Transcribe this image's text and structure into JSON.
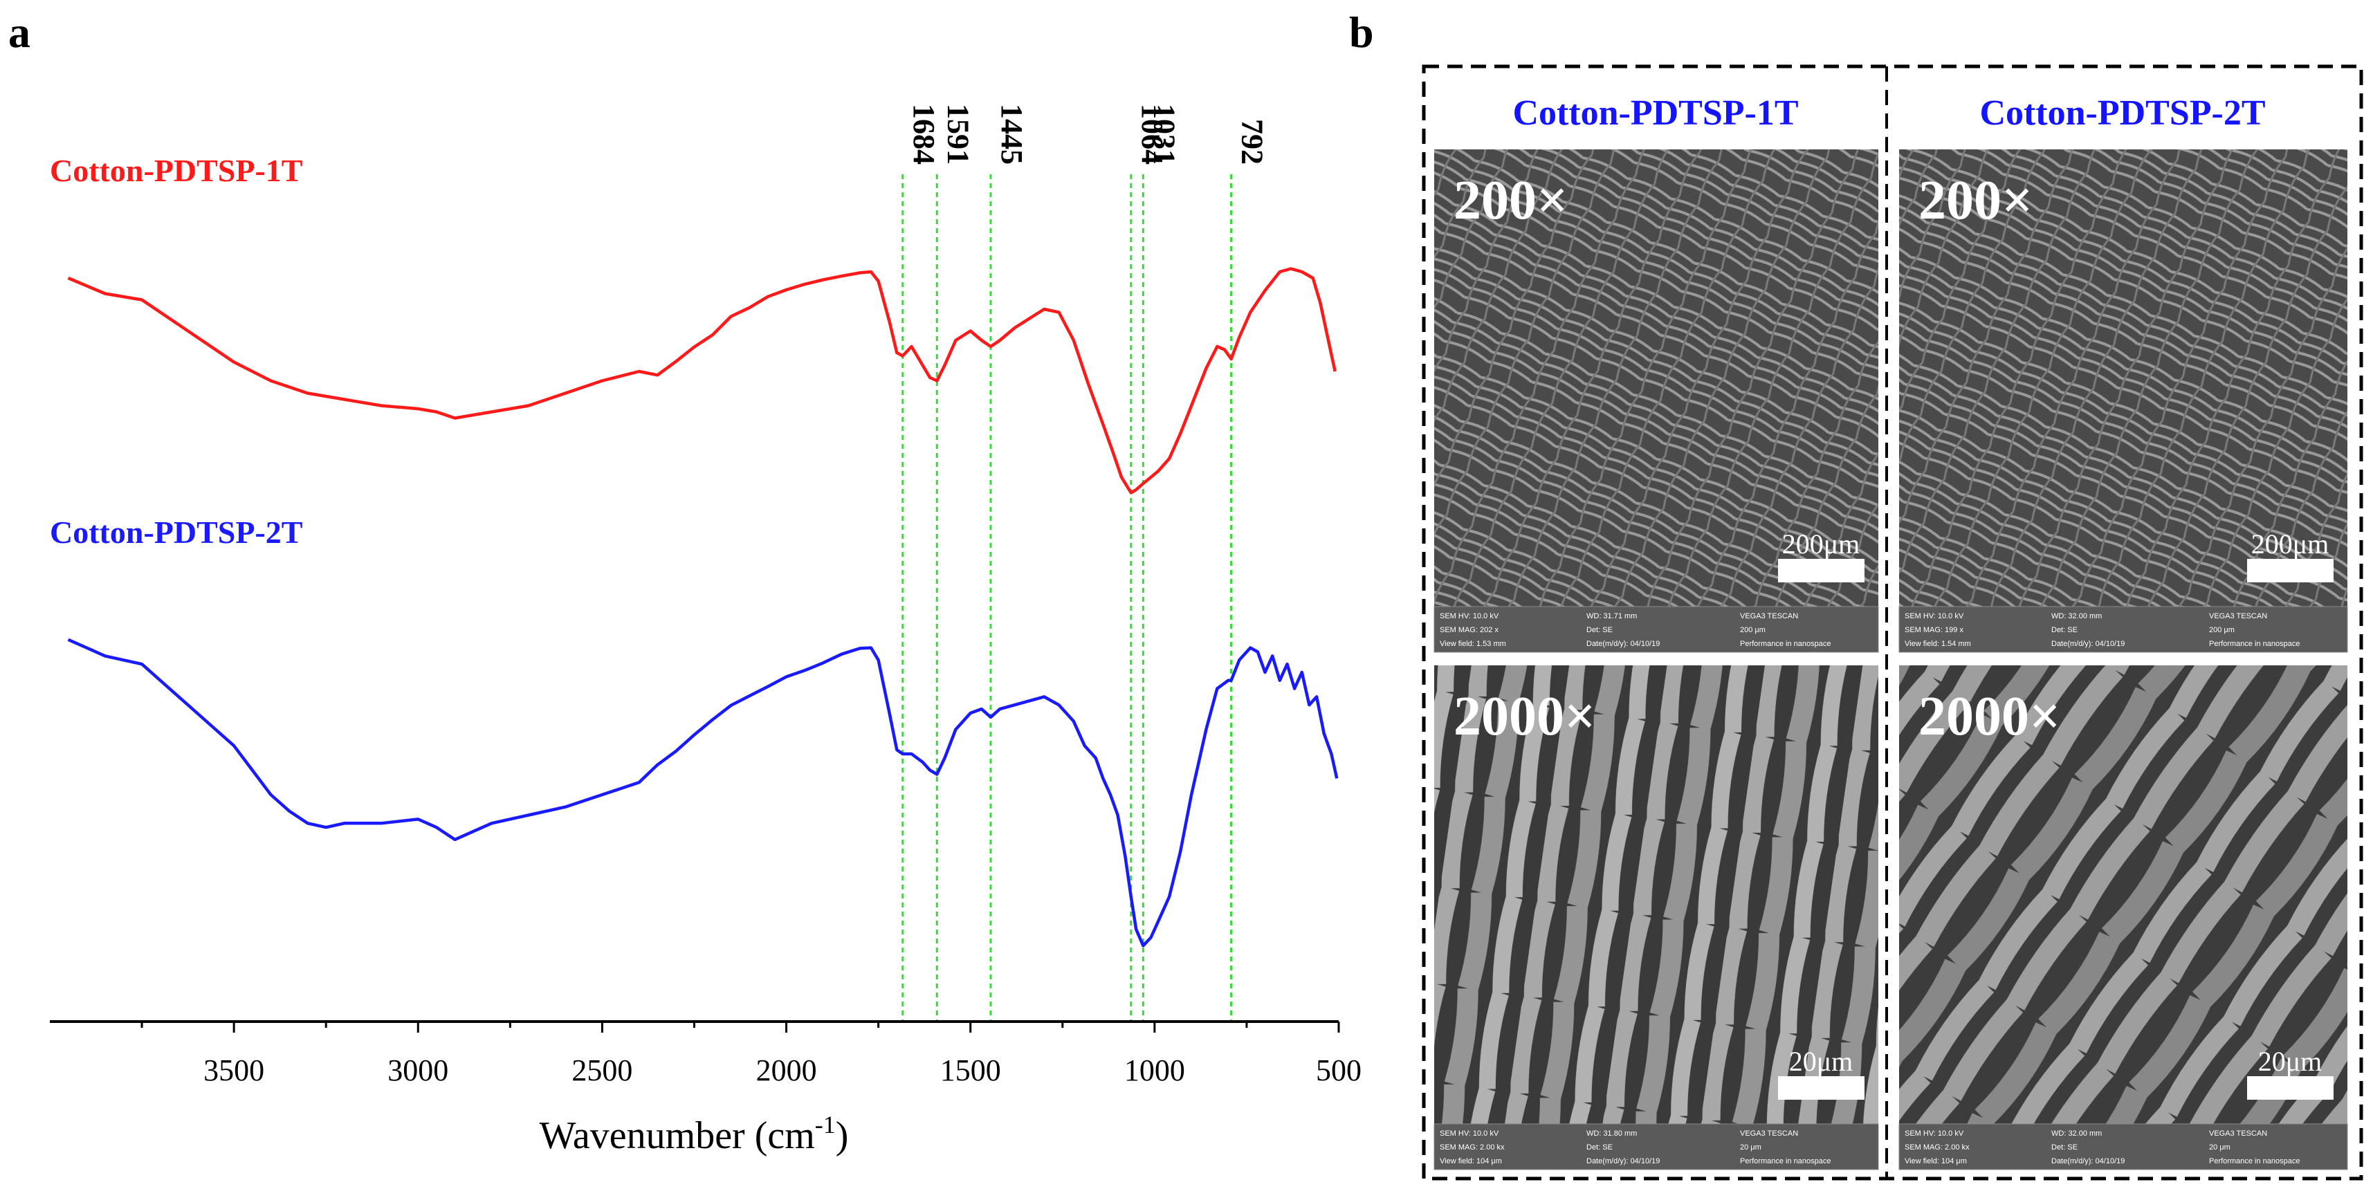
{
  "panels": {
    "a_letter": "a",
    "b_letter": "b"
  },
  "chart_data": {
    "type": "line",
    "title": "",
    "xlabel": "Wavenumber (cm",
    "xlabel_sup": "-1",
    "xlabel_close": ")",
    "ylabel": "",
    "xlim": [
      4000,
      500
    ],
    "ylim": [
      0,
      1
    ],
    "x_ticks": [
      3500,
      3000,
      2500,
      2000,
      1500,
      1000,
      500
    ],
    "x_tick_labels": [
      "3500",
      "3000",
      "2500",
      "2000",
      "1500",
      "1000",
      "500"
    ],
    "minor_tick_step": 250,
    "grid": false,
    "reference_lines": {
      "color": "#2fe02f",
      "positions": [
        1684,
        1591,
        1445,
        1064,
        1031,
        792
      ],
      "labels": [
        "1684",
        "1591",
        "1445",
        "1064",
        "1031",
        "792"
      ]
    },
    "series": [
      {
        "name": "Cotton-PDTSP-1T",
        "color": "#ff1a1a",
        "x": [
          3950,
          3850,
          3750,
          3700,
          3600,
          3500,
          3400,
          3300,
          3200,
          3100,
          3000,
          2950,
          2900,
          2850,
          2800,
          2700,
          2600,
          2500,
          2400,
          2350,
          2300,
          2250,
          2200,
          2150,
          2100,
          2050,
          2000,
          1950,
          1900,
          1850,
          1800,
          1770,
          1750,
          1720,
          1700,
          1684,
          1660,
          1630,
          1610,
          1591,
          1570,
          1540,
          1500,
          1470,
          1445,
          1420,
          1380,
          1340,
          1300,
          1260,
          1220,
          1180,
          1140,
          1110,
          1090,
          1064,
          1050,
          1031,
          1010,
          990,
          960,
          930,
          900,
          860,
          830,
          810,
          792,
          770,
          740,
          700,
          660,
          630,
          600,
          570,
          550,
          530,
          510
        ],
        "y": [
          0.74,
          0.69,
          0.67,
          0.63,
          0.55,
          0.47,
          0.41,
          0.37,
          0.35,
          0.33,
          0.32,
          0.31,
          0.29,
          0.3,
          0.31,
          0.33,
          0.37,
          0.41,
          0.44,
          0.45,
          0.49,
          0.53,
          0.56,
          0.61,
          0.63,
          0.66,
          0.68,
          0.7,
          0.72,
          0.74,
          0.76,
          0.76,
          0.73,
          0.6,
          0.5,
          0.49,
          0.52,
          0.46,
          0.42,
          0.41,
          0.46,
          0.54,
          0.57,
          0.54,
          0.52,
          0.54,
          0.58,
          0.61,
          0.64,
          0.63,
          0.54,
          0.4,
          0.27,
          0.17,
          0.1,
          0.05,
          0.06,
          0.08,
          0.1,
          0.12,
          0.16,
          0.24,
          0.33,
          0.45,
          0.52,
          0.51,
          0.48,
          0.55,
          0.63,
          0.7,
          0.76,
          0.77,
          0.76,
          0.74,
          0.66,
          0.55,
          0.44
        ]
      },
      {
        "name": "Cotton-PDTSP-2T",
        "color": "#1a1aff",
        "x": [
          3950,
          3850,
          3750,
          3700,
          3600,
          3500,
          3450,
          3400,
          3350,
          3300,
          3250,
          3200,
          3100,
          3000,
          2950,
          2900,
          2850,
          2800,
          2700,
          2600,
          2500,
          2400,
          2350,
          2300,
          2250,
          2200,
          2150,
          2100,
          2050,
          2000,
          1950,
          1900,
          1850,
          1800,
          1770,
          1750,
          1720,
          1700,
          1684,
          1660,
          1630,
          1610,
          1591,
          1570,
          1540,
          1500,
          1470,
          1445,
          1420,
          1380,
          1340,
          1300,
          1260,
          1220,
          1190,
          1160,
          1140,
          1120,
          1100,
          1080,
          1064,
          1050,
          1031,
          1010,
          990,
          960,
          930,
          900,
          860,
          830,
          800,
          792,
          770,
          740,
          720,
          700,
          680,
          660,
          640,
          620,
          600,
          580,
          560,
          540,
          520,
          505
        ],
        "y": [
          0.78,
          0.74,
          0.72,
          0.68,
          0.6,
          0.52,
          0.46,
          0.4,
          0.36,
          0.33,
          0.32,
          0.33,
          0.33,
          0.34,
          0.32,
          0.29,
          0.31,
          0.33,
          0.35,
          0.37,
          0.4,
          0.43,
          0.46,
          0.49,
          0.53,
          0.57,
          0.61,
          0.64,
          0.67,
          0.7,
          0.72,
          0.74,
          0.76,
          0.77,
          0.76,
          0.73,
          0.6,
          0.51,
          0.5,
          0.5,
          0.48,
          0.46,
          0.45,
          0.49,
          0.56,
          0.6,
          0.61,
          0.59,
          0.61,
          0.62,
          0.63,
          0.64,
          0.62,
          0.58,
          0.52,
          0.49,
          0.44,
          0.4,
          0.35,
          0.25,
          0.15,
          0.07,
          0.03,
          0.05,
          0.09,
          0.15,
          0.26,
          0.4,
          0.56,
          0.66,
          0.68,
          0.68,
          0.73,
          0.76,
          0.75,
          0.7,
          0.74,
          0.68,
          0.72,
          0.66,
          0.7,
          0.62,
          0.64,
          0.55,
          0.5,
          0.44
        ]
      }
    ]
  },
  "sem": {
    "column_titles": [
      "Cotton-PDTSP-1T",
      "Cotton-PDTSP-2T"
    ],
    "images": [
      {
        "magnification": "200×",
        "scale_bar": "200μm",
        "meta_row1": [
          "SEM HV: 10.0 kV",
          "WD: 31.71 mm",
          "VEGA3 TESCAN"
        ],
        "meta_row2": [
          "SEM MAG: 202 x",
          "Det: SE",
          "200 μm"
        ],
        "meta_row3": [
          "View field: 1.53 mm",
          "Date(m/d/y): 04/10/19",
          "Performance in nanospace"
        ]
      },
      {
        "magnification": "200×",
        "scale_bar": "200μm",
        "meta_row1": [
          "SEM HV: 10.0 kV",
          "WD: 32.00 mm",
          "VEGA3 TESCAN"
        ],
        "meta_row2": [
          "SEM MAG: 199 x",
          "Det: SE",
          "200 μm"
        ],
        "meta_row3": [
          "View field: 1.54 mm",
          "Date(m/d/y): 04/10/19",
          "Performance in nanospace"
        ]
      },
      {
        "magnification": "2000×",
        "scale_bar": "20μm",
        "meta_row1": [
          "SEM HV: 10.0 kV",
          "WD: 31.80 mm",
          "VEGA3 TESCAN"
        ],
        "meta_row2": [
          "SEM MAG: 2.00 kx",
          "Det: SE",
          "20 μm"
        ],
        "meta_row3": [
          "View field: 104 μm",
          "Date(m/d/y): 04/10/19",
          "Performance in nanospace"
        ]
      },
      {
        "magnification": "2000×",
        "scale_bar": "20μm",
        "meta_row1": [
          "SEM HV: 10.0 kV",
          "WD: 32.00 mm",
          "VEGA3 TESCAN"
        ],
        "meta_row2": [
          "SEM MAG: 2.00 kx",
          "Det: SE",
          "20 μm"
        ],
        "meta_row3": [
          "View field: 104 μm",
          "Date(m/d/y): 04/10/19",
          "Performance in nanospace"
        ]
      }
    ]
  }
}
